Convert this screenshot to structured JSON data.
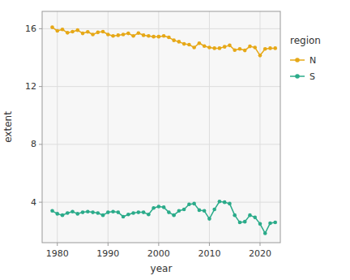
{
  "chart_data": {
    "type": "line",
    "xlabel": "year",
    "ylabel": "extent",
    "legend_title": "region",
    "x": [
      1979,
      1980,
      1981,
      1982,
      1983,
      1984,
      1985,
      1986,
      1987,
      1988,
      1989,
      1990,
      1991,
      1992,
      1993,
      1994,
      1995,
      1996,
      1997,
      1998,
      1999,
      2000,
      2001,
      2002,
      2003,
      2004,
      2005,
      2006,
      2007,
      2008,
      2009,
      2010,
      2011,
      2012,
      2013,
      2014,
      2015,
      2016,
      2017,
      2018,
      2019,
      2020,
      2021,
      2022,
      2023
    ],
    "series": [
      {
        "name": "N",
        "color": "#E6A817",
        "marker": "circle",
        "values": [
          16.1,
          15.85,
          15.95,
          15.72,
          15.8,
          15.9,
          15.68,
          15.78,
          15.6,
          15.75,
          15.8,
          15.6,
          15.5,
          15.55,
          15.6,
          15.68,
          15.5,
          15.7,
          15.55,
          15.5,
          15.45,
          15.45,
          15.5,
          15.4,
          15.2,
          15.1,
          14.95,
          14.9,
          14.7,
          15.0,
          14.8,
          14.7,
          14.65,
          14.65,
          14.75,
          14.85,
          14.52,
          14.6,
          14.5,
          14.78,
          14.7,
          14.15,
          14.6,
          14.65,
          14.65
        ]
      },
      {
        "name": "S",
        "color": "#2BAB8A",
        "marker": "circle",
        "values": [
          3.4,
          3.2,
          3.1,
          3.25,
          3.35,
          3.2,
          3.3,
          3.35,
          3.3,
          3.25,
          3.1,
          3.3,
          3.35,
          3.3,
          3.0,
          3.15,
          3.25,
          3.3,
          3.3,
          3.15,
          3.6,
          3.7,
          3.65,
          3.3,
          3.1,
          3.4,
          3.5,
          3.85,
          3.9,
          3.45,
          3.4,
          2.85,
          3.5,
          4.05,
          4.0,
          3.9,
          3.1,
          2.6,
          2.65,
          3.1,
          2.95,
          2.5,
          1.85,
          2.55,
          2.6
        ]
      }
    ],
    "xlim": [
      1977,
      2024
    ],
    "ylim": [
      1.2,
      17.2
    ],
    "xticks": [
      1980,
      1990,
      2000,
      2010,
      2020
    ],
    "yticks": [
      4,
      8,
      12,
      16
    ],
    "grid": true,
    "legend": "right"
  }
}
